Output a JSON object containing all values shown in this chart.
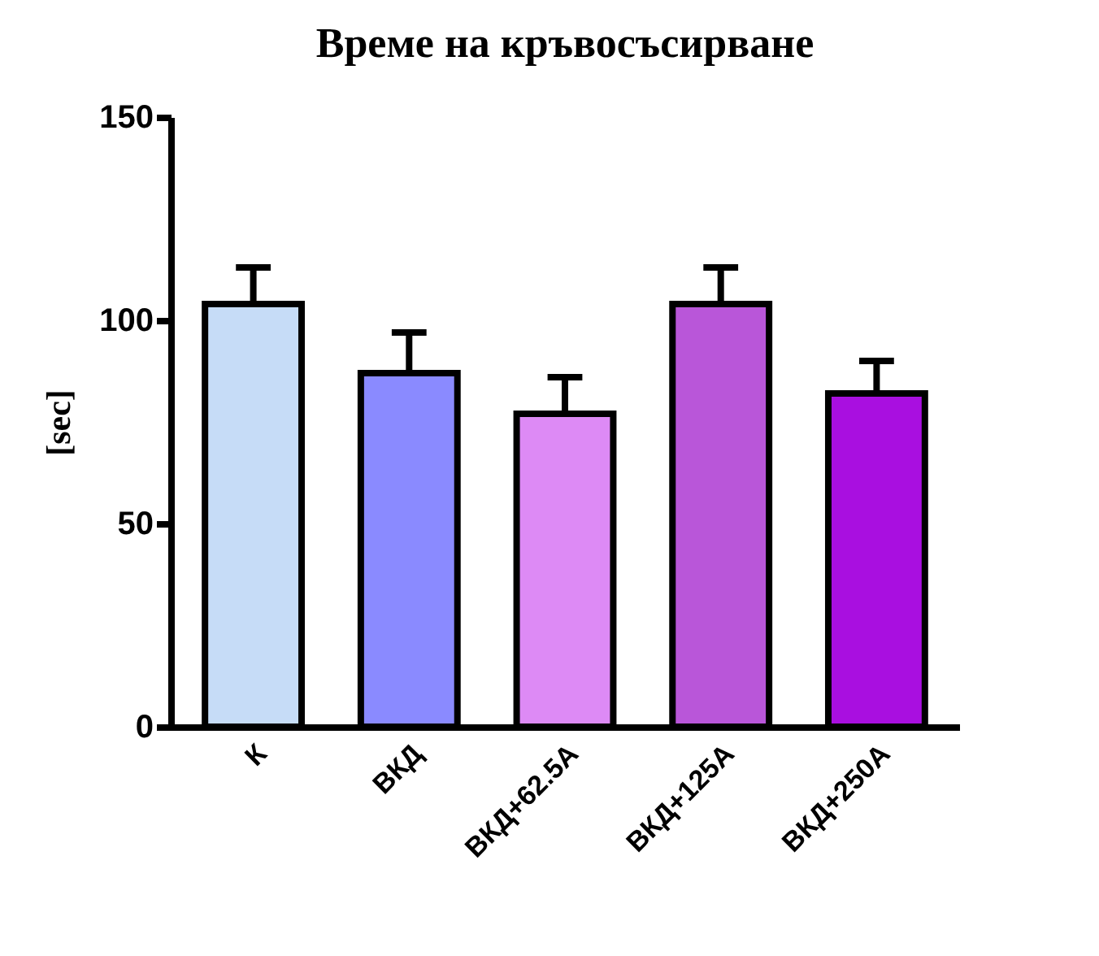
{
  "chart_data": {
    "type": "bar",
    "title": "Време на кръвосъсирване",
    "ylabel": "[sec]",
    "categories": [
      "К",
      "ВКД",
      "ВКД+62.5А",
      "ВКД+125А",
      "ВКД+250А"
    ],
    "values": [
      104,
      87,
      77,
      104,
      82
    ],
    "colors": [
      "#c6dcf7",
      "#8a8aff",
      "#dd8af5",
      "#b956d9",
      "#a90fe0"
    ],
    "errors": [
      9,
      10,
      9,
      9,
      8
    ],
    "ylim": [
      0,
      150
    ],
    "yticks": [
      0,
      50,
      100,
      150
    ],
    "grid": false
  }
}
